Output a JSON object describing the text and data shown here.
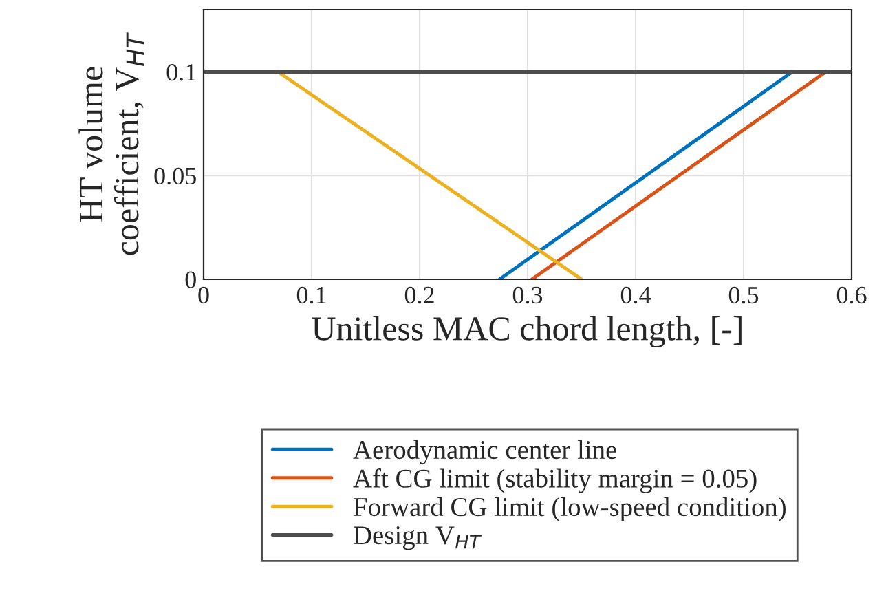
{
  "chart_data": {
    "type": "line",
    "xlabel": "Unitless MAC chord length, [-]",
    "ylabel": "HT volume\ncoefficient, V$_{HT}$",
    "series": [
      {
        "name": "Aerodynamic center line",
        "color": "#0072bd",
        "x": [
          0.274,
          0.545
        ],
        "values": [
          0,
          0.1
        ]
      },
      {
        "name": "Aft CG limit (stability margin = 0.05)",
        "color": "#d95319",
        "x": [
          0.304,
          0.576
        ],
        "values": [
          0,
          0.1
        ]
      },
      {
        "name": "Forward CG limit (low-speed condition)",
        "color": "#edb120",
        "x": [
          0.069,
          0.35
        ],
        "values": [
          0.1,
          0
        ]
      },
      {
        "name": "Design V$_{HT}$",
        "color": "#4d4d4d",
        "x": [
          0,
          0.6
        ],
        "values": [
          0.1,
          0.1
        ]
      }
    ],
    "xlim": [
      0,
      0.6
    ],
    "xticks": [
      0,
      0.1,
      0.2,
      0.3,
      0.4,
      0.5,
      0.6
    ],
    "ylim": [
      0,
      0.13
    ],
    "yticks": [
      0,
      0.05,
      0.1
    ],
    "grid": true,
    "legend": "bottom",
    "line_style": "solid",
    "marker": "none"
  }
}
